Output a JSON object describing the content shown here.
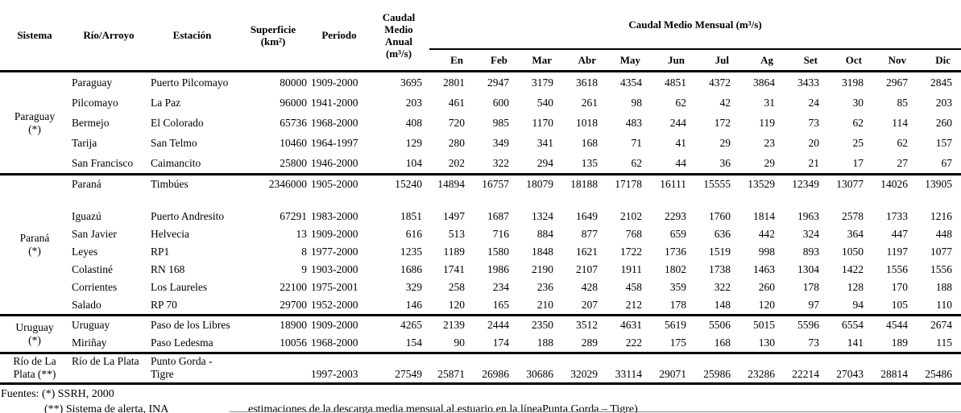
{
  "table": {
    "headers": {
      "sistema": "Sistema",
      "rio": "Río/Arroyo",
      "estacion": "Estación",
      "superficie": "Superficie\n(km²)",
      "periodo": "Periodo",
      "anual": "Caudal\nMedio\nAnual\n(m³/s)",
      "mensual": "Caudal Medio Mensual (m³/s)"
    },
    "months": [
      "En",
      "Feb",
      "Mar",
      "Abr",
      "May",
      "Jun",
      "Jul",
      "Ag",
      "Set",
      "Oct",
      "Nov",
      "Dic"
    ],
    "groups": [
      {
        "sistema": [
          "Paraguay",
          "(*)"
        ],
        "rows": [
          {
            "rio": "Paraguay",
            "estacion": "Puerto Pilcomayo",
            "superficie": "80000",
            "periodo": "1909-2000",
            "anual": "3695",
            "meses": [
              "2801",
              "2947",
              "3179",
              "3618",
              "4354",
              "4851",
              "4372",
              "3864",
              "3433",
              "3198",
              "2967",
              "2845"
            ]
          },
          {
            "rio": "Pilcomayo",
            "estacion": "La Paz",
            "superficie": "96000",
            "periodo": "1941-2000",
            "anual": "203",
            "meses": [
              "461",
              "600",
              "540",
              "261",
              "98",
              "62",
              "42",
              "31",
              "24",
              "30",
              "85",
              "203"
            ]
          },
          {
            "rio": "Bermejo",
            "estacion": "El Colorado",
            "superficie": "65736",
            "periodo": "1968-2000",
            "anual": "408",
            "meses": [
              "720",
              "985",
              "1170",
              "1018",
              "483",
              "244",
              "172",
              "119",
              "73",
              "62",
              "114",
              "260"
            ]
          },
          {
            "rio": "Tarija",
            "estacion": "San Telmo",
            "superficie": "10460",
            "periodo": "1964-1997",
            "anual": "129",
            "meses": [
              "280",
              "349",
              "341",
              "168",
              "71",
              "41",
              "29",
              "23",
              "20",
              "25",
              "62",
              "157"
            ]
          },
          {
            "rio": "San Francisco",
            "estacion": "Caimancito",
            "superficie": "25800",
            "periodo": "1946-2000",
            "anual": "104",
            "meses": [
              "202",
              "322",
              "294",
              "135",
              "62",
              "44",
              "36",
              "29",
              "21",
              "17",
              "27",
              "67"
            ]
          }
        ]
      },
      {
        "sistema": [
          "Paraná",
          "(*)"
        ],
        "rows": [
          {
            "rio": "Paraná",
            "estacion": "Timbúes",
            "superficie": "2346000",
            "periodo": "1905-2000",
            "anual": "15240",
            "meses": [
              "14894",
              "16757",
              "18079",
              "18188",
              "17178",
              "16111",
              "15555",
              "13529",
              "12349",
              "13077",
              "14026",
              "13905"
            ],
            "spacer_after": true
          },
          {
            "rio": "Iguazú",
            "estacion": "Puerto Andresito",
            "superficie": "67291",
            "periodo": "1983-2000",
            "anual": "1851",
            "meses": [
              "1497",
              "1687",
              "1324",
              "1649",
              "2102",
              "2293",
              "1760",
              "1814",
              "1963",
              "2578",
              "1733",
              "1216"
            ]
          },
          {
            "rio": "San Javier",
            "estacion": "Helvecia",
            "superficie": "13",
            "periodo": "1909-2000",
            "anual": "616",
            "meses": [
              "513",
              "716",
              "884",
              "877",
              "768",
              "659",
              "636",
              "442",
              "324",
              "364",
              "447",
              "448"
            ]
          },
          {
            "rio": "Leyes",
            "estacion": "RP1",
            "superficie": "8",
            "periodo": "1977-2000",
            "anual": "1235",
            "meses": [
              "1189",
              "1580",
              "1848",
              "1621",
              "1722",
              "1736",
              "1519",
              "998",
              "893",
              "1050",
              "1197",
              "1077"
            ]
          },
          {
            "rio": "Colastiné",
            "estacion": "RN 168",
            "superficie": "9",
            "periodo": "1903-2000",
            "anual": "1686",
            "meses": [
              "1741",
              "1986",
              "2190",
              "2107",
              "1911",
              "1802",
              "1738",
              "1463",
              "1304",
              "1422",
              "1556",
              "1556"
            ]
          },
          {
            "rio": "Corrientes",
            "estacion": "Los Laureles",
            "superficie": "22100",
            "periodo": "1975-2001",
            "anual": "329",
            "meses": [
              "258",
              "234",
              "236",
              "428",
              "458",
              "359",
              "322",
              "260",
              "178",
              "128",
              "170",
              "188"
            ]
          },
          {
            "rio": "Salado",
            "estacion": "RP 70",
            "superficie": "29700",
            "periodo": "1952-2000",
            "anual": "146",
            "meses": [
              "120",
              "165",
              "210",
              "207",
              "212",
              "178",
              "148",
              "120",
              "97",
              "94",
              "105",
              "110"
            ]
          }
        ]
      },
      {
        "sistema": [
          "Uruguay",
          "(*)"
        ],
        "rows": [
          {
            "rio": "Uruguay",
            "estacion": "Paso de los Libres",
            "superficie": "18900",
            "periodo": "1909-2000",
            "anual": "4265",
            "meses": [
              "2139",
              "2444",
              "2350",
              "3512",
              "4631",
              "5619",
              "5506",
              "5015",
              "5596",
              "6554",
              "4544",
              "2674"
            ]
          },
          {
            "rio": "Miriñay",
            "estacion": "Paso Ledesma",
            "superficie": "10056",
            "periodo": "1968-2000",
            "anual": "154",
            "meses": [
              "90",
              "174",
              "188",
              "289",
              "222",
              "175",
              "168",
              "130",
              "73",
              "141",
              "189",
              "115"
            ]
          }
        ]
      },
      {
        "sistema": [
          "Río de La Plata (**)"
        ],
        "wrap": true,
        "rows": [
          {
            "rio": "Río de La Plata",
            "estacion": "Punto Gorda - Tigre",
            "superficie": "",
            "periodo": "1997-2003",
            "anual": "27549",
            "wrap": true,
            "meses": [
              "25871",
              "26986",
              "30686",
              "32029",
              "33114",
              "29071",
              "25986",
              "23286",
              "22214",
              "27043",
              "28814",
              "25486"
            ]
          }
        ]
      }
    ]
  },
  "footer": {
    "line1": "Fuentes: (*) SSRH, 2000",
    "line2_left": "(**) Sistema de alerta, INA",
    "line2_right": "estimaciones de la descarga media mensual al estuario en la líneaPunta Gorda – Tigre)"
  }
}
